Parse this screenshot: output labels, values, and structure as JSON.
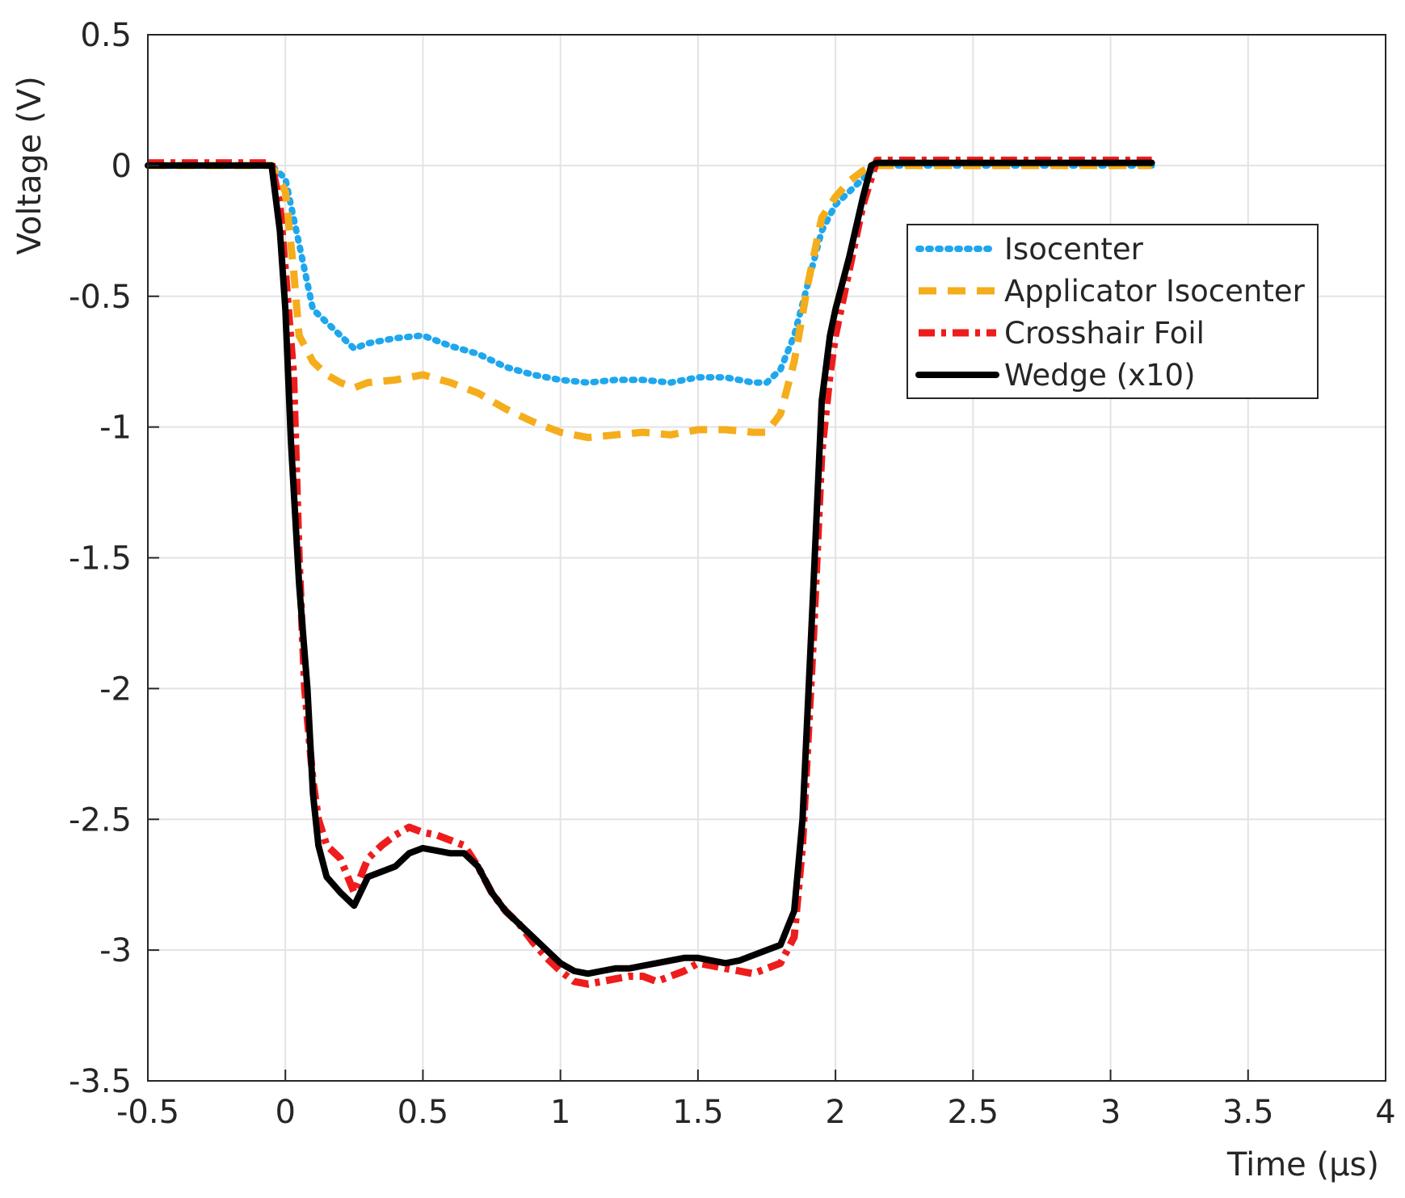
{
  "chart_data": {
    "type": "line",
    "title": "",
    "xlabel": "Time (μs)",
    "ylabel": "Voltage (V)",
    "xlim": [
      -0.5,
      4
    ],
    "ylim": [
      -3.5,
      0.5
    ],
    "xticks": [
      -0.5,
      0,
      0.5,
      1,
      1.5,
      2,
      2.5,
      3,
      3.5,
      4
    ],
    "yticks": [
      0.5,
      0,
      -0.5,
      -1,
      -1.5,
      -2,
      -2.5,
      -3,
      -3.5
    ],
    "xtick_labels": [
      "-0.5",
      "0",
      "0.5",
      "1",
      "1.5",
      "2",
      "2.5",
      "3",
      "3.5",
      "4"
    ],
    "ytick_labels": [
      "0.5",
      "0",
      "-0.5",
      "-1",
      "-1.5",
      "-2",
      "-2.5",
      "-3",
      "-3.5"
    ],
    "grid": true,
    "legend_position": "top-right",
    "series": [
      {
        "name": "Isocenter",
        "color": "#1ea7ee",
        "style": "dotted",
        "x": [
          -0.5,
          -0.05,
          0.0,
          0.05,
          0.1,
          0.2,
          0.25,
          0.3,
          0.4,
          0.5,
          0.6,
          0.7,
          0.8,
          0.9,
          1.0,
          1.1,
          1.2,
          1.3,
          1.4,
          1.5,
          1.6,
          1.7,
          1.75,
          1.8,
          1.85,
          1.9,
          1.95,
          2.0,
          2.05,
          2.1,
          2.15,
          2.2,
          2.5,
          3.0,
          3.15
        ],
        "y": [
          0.0,
          0.0,
          -0.05,
          -0.3,
          -0.55,
          -0.65,
          -0.7,
          -0.68,
          -0.66,
          -0.65,
          -0.69,
          -0.72,
          -0.77,
          -0.8,
          -0.82,
          -0.83,
          -0.82,
          -0.82,
          -0.83,
          -0.81,
          -0.81,
          -0.83,
          -0.83,
          -0.78,
          -0.65,
          -0.45,
          -0.25,
          -0.15,
          -0.1,
          -0.05,
          0.0,
          0.0,
          0.0,
          0.0,
          0.0
        ]
      },
      {
        "name": "Applicator Isocenter",
        "color": "#f5ad1c",
        "style": "dashed",
        "x": [
          -0.5,
          -0.05,
          0.0,
          0.03,
          0.05,
          0.1,
          0.15,
          0.2,
          0.25,
          0.3,
          0.4,
          0.5,
          0.6,
          0.7,
          0.8,
          0.9,
          1.0,
          1.1,
          1.2,
          1.3,
          1.4,
          1.5,
          1.6,
          1.7,
          1.75,
          1.8,
          1.85,
          1.9,
          1.95,
          2.0,
          2.05,
          2.1,
          2.15,
          2.5,
          3.0,
          3.15
        ],
        "y": [
          0.0,
          0.0,
          -0.1,
          -0.4,
          -0.65,
          -0.75,
          -0.8,
          -0.83,
          -0.85,
          -0.83,
          -0.82,
          -0.8,
          -0.83,
          -0.87,
          -0.93,
          -0.98,
          -1.02,
          -1.04,
          -1.03,
          -1.02,
          -1.03,
          -1.01,
          -1.01,
          -1.02,
          -1.02,
          -0.95,
          -0.75,
          -0.45,
          -0.2,
          -0.12,
          -0.06,
          -0.02,
          0.0,
          0.0,
          0.0,
          0.0
        ]
      },
      {
        "name": "Crosshair Foil",
        "color": "#ee1c1c",
        "style": "dashdot",
        "x": [
          -0.5,
          -0.05,
          -0.02,
          0.0,
          0.03,
          0.05,
          0.07,
          0.1,
          0.12,
          0.15,
          0.2,
          0.25,
          0.3,
          0.35,
          0.4,
          0.45,
          0.5,
          0.55,
          0.6,
          0.65,
          0.7,
          0.75,
          0.8,
          0.85,
          0.9,
          0.95,
          1.0,
          1.05,
          1.1,
          1.15,
          1.2,
          1.25,
          1.3,
          1.35,
          1.4,
          1.45,
          1.5,
          1.55,
          1.6,
          1.65,
          1.7,
          1.75,
          1.8,
          1.85,
          1.88,
          1.92,
          1.95,
          1.98,
          2.0,
          2.05,
          2.1,
          2.15,
          2.5,
          3.0,
          3.15
        ],
        "y": [
          0.01,
          0.01,
          -0.15,
          -0.4,
          -0.8,
          -1.5,
          -2.0,
          -2.35,
          -2.5,
          -2.6,
          -2.65,
          -2.78,
          -2.65,
          -2.6,
          -2.56,
          -2.53,
          -2.55,
          -2.56,
          -2.58,
          -2.6,
          -2.68,
          -2.78,
          -2.85,
          -2.9,
          -2.97,
          -3.03,
          -3.08,
          -3.12,
          -3.13,
          -3.12,
          -3.11,
          -3.1,
          -3.1,
          -3.12,
          -3.1,
          -3.08,
          -3.05,
          -3.06,
          -3.07,
          -3.08,
          -3.09,
          -3.07,
          -3.05,
          -2.95,
          -2.6,
          -1.8,
          -1.1,
          -0.8,
          -0.65,
          -0.4,
          -0.15,
          0.02,
          0.02,
          0.02,
          0.02
        ]
      },
      {
        "name": "Wedge (x10)",
        "color": "#000000",
        "style": "solid",
        "x": [
          -0.5,
          -0.05,
          -0.02,
          0.0,
          0.02,
          0.05,
          0.08,
          0.1,
          0.12,
          0.15,
          0.2,
          0.25,
          0.3,
          0.35,
          0.4,
          0.45,
          0.5,
          0.55,
          0.6,
          0.65,
          0.7,
          0.75,
          0.8,
          0.85,
          0.9,
          0.95,
          1.0,
          1.05,
          1.1,
          1.15,
          1.2,
          1.25,
          1.3,
          1.35,
          1.4,
          1.45,
          1.5,
          1.55,
          1.6,
          1.65,
          1.7,
          1.75,
          1.8,
          1.85,
          1.88,
          1.92,
          1.95,
          1.98,
          2.0,
          2.05,
          2.1,
          2.13,
          2.15,
          2.5,
          3.0,
          3.15
        ],
        "y": [
          0.0,
          0.0,
          -0.25,
          -0.55,
          -1.05,
          -1.6,
          -2.0,
          -2.4,
          -2.6,
          -2.72,
          -2.78,
          -2.83,
          -2.72,
          -2.7,
          -2.68,
          -2.63,
          -2.61,
          -2.62,
          -2.63,
          -2.63,
          -2.68,
          -2.78,
          -2.85,
          -2.9,
          -2.95,
          -3.0,
          -3.05,
          -3.08,
          -3.09,
          -3.08,
          -3.07,
          -3.07,
          -3.06,
          -3.05,
          -3.04,
          -3.03,
          -3.03,
          -3.04,
          -3.05,
          -3.04,
          -3.02,
          -3.0,
          -2.98,
          -2.85,
          -2.5,
          -1.6,
          -0.9,
          -0.65,
          -0.55,
          -0.35,
          -0.12,
          0.0,
          0.01,
          0.01,
          0.01,
          0.01
        ]
      }
    ]
  }
}
